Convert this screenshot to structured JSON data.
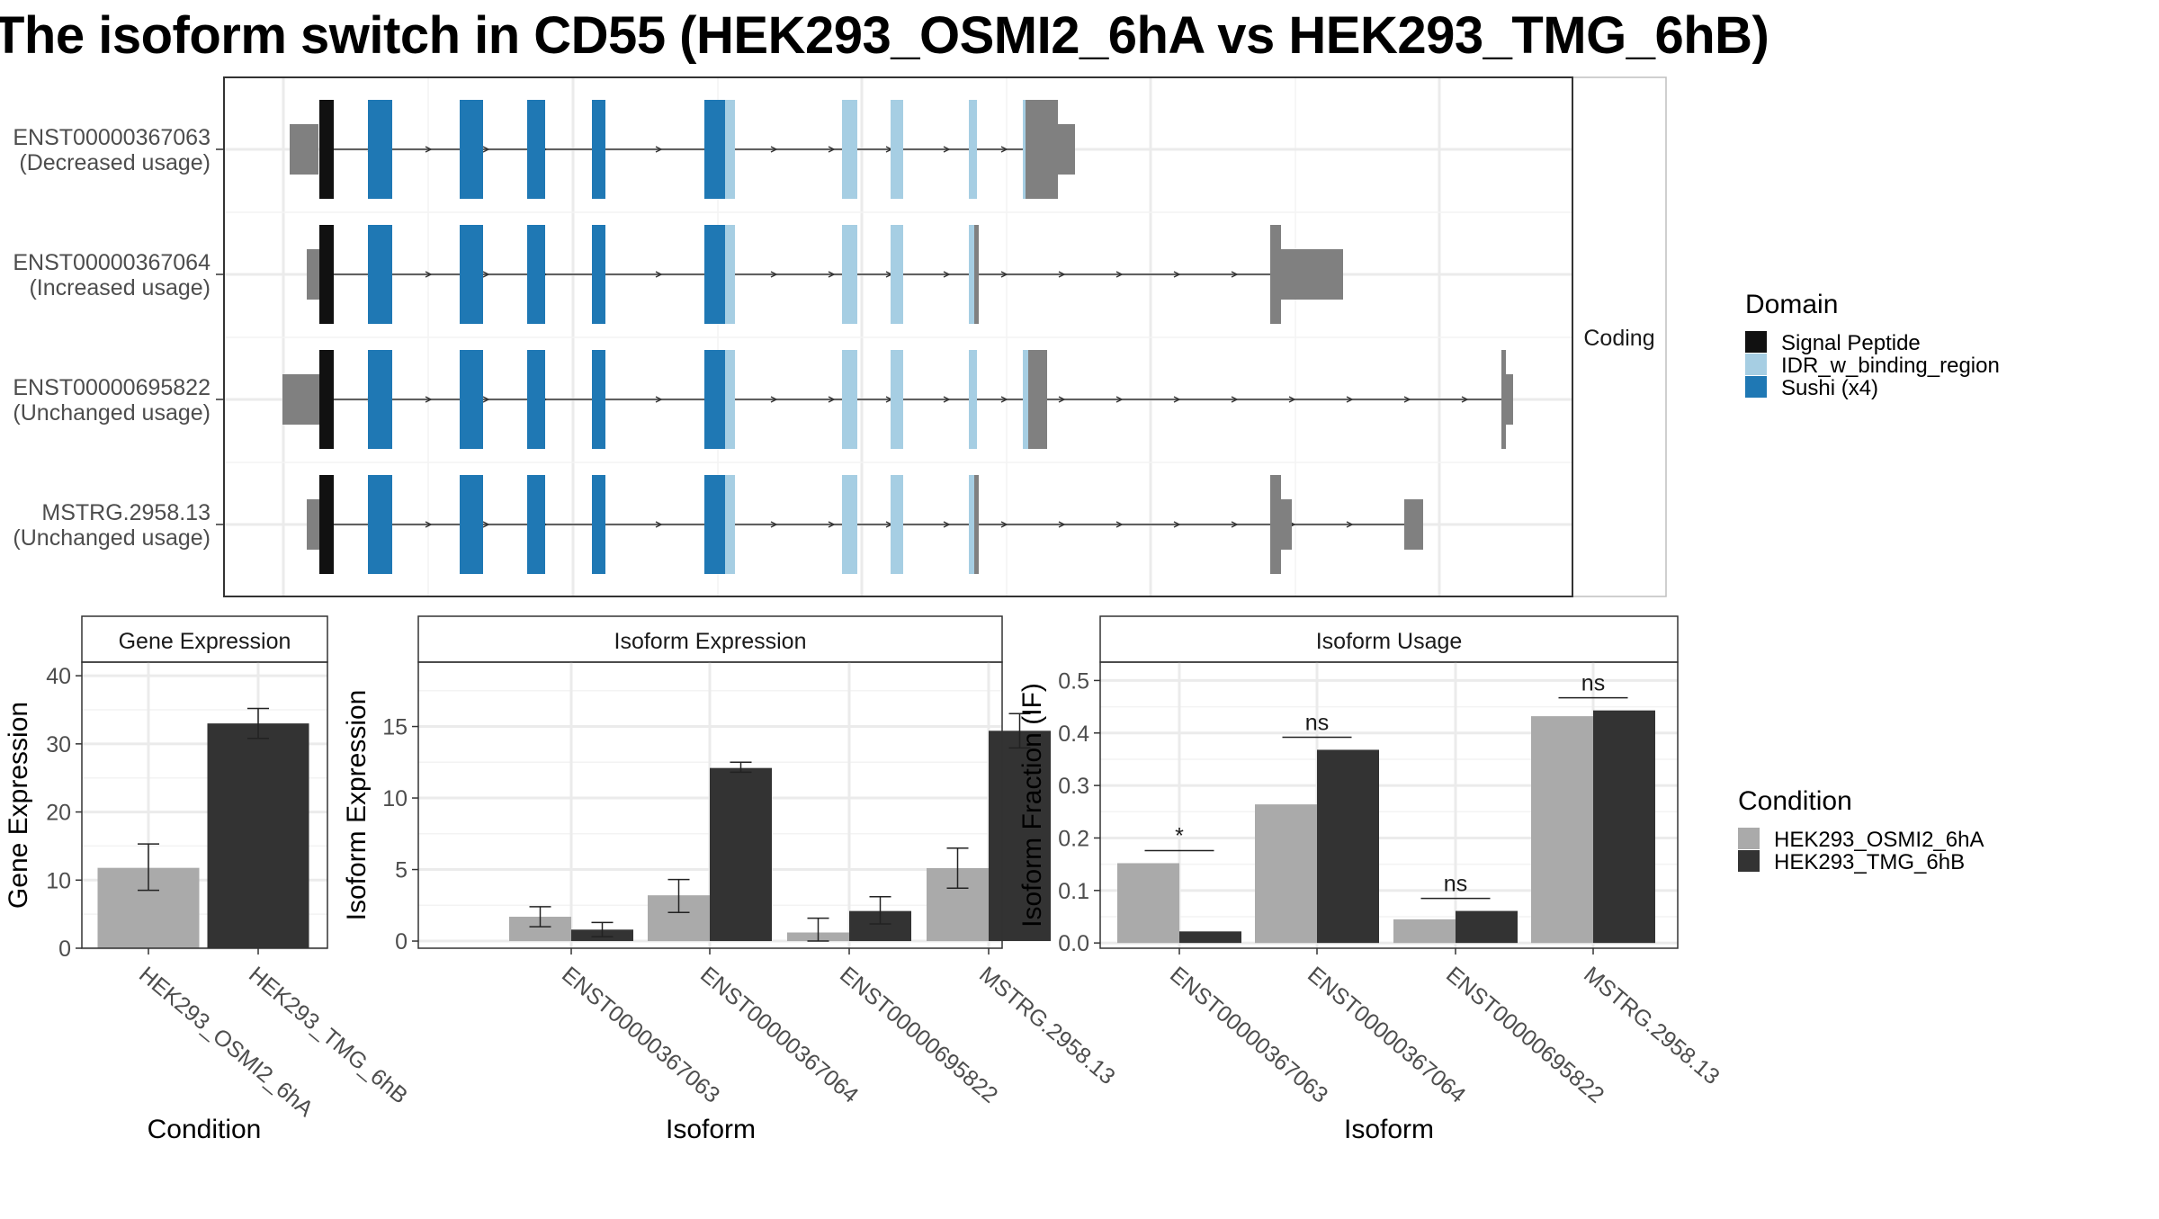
{
  "title": "The isoform switch in CD55 (HEK293_OSMI2_6hA vs HEK293_TMG_6hB)",
  "colors": {
    "signal_peptide": "#111111",
    "idr_binding": "#a6cee3",
    "sushi": "#1f78b4",
    "noncoding": "#808080",
    "cond_a": "#aaaaaa",
    "cond_b": "#333333"
  },
  "isoform_structure": {
    "facet_label": "Coding",
    "transcripts": [
      {
        "id": "ENST00000367063",
        "usage": "(Decreased usage)"
      },
      {
        "id": "ENST00000367064",
        "usage": "(Increased usage)"
      },
      {
        "id": "ENST00000695822",
        "usage": "(Unchanged usage)"
      },
      {
        "id": "MSTRG.2958.13",
        "usage": "(Unchanged usage)"
      }
    ]
  },
  "domain_legend": {
    "title": "Domain",
    "items": [
      {
        "label": "Signal Peptide",
        "color": "#111111"
      },
      {
        "label": "IDR_w_binding_region",
        "color": "#a6cee3"
      },
      {
        "label": "Sushi (x4)",
        "color": "#1f78b4"
      }
    ]
  },
  "condition_legend": {
    "title": "Condition",
    "items": [
      {
        "label": "HEK293_OSMI2_6hA",
        "color": "#aaaaaa"
      },
      {
        "label": "HEK293_TMG_6hB",
        "color": "#333333"
      }
    ]
  },
  "chart_data": [
    {
      "type": "bar",
      "title": "Gene Expression",
      "xlabel": "Condition",
      "ylabel": "Gene Expression",
      "categories": [
        "HEK293_OSMI2_6hA",
        "HEK293_TMG_6hB"
      ],
      "values": [
        11.8,
        33.0
      ],
      "errors": [
        [
          8.5,
          15.3
        ],
        [
          30.8,
          35.2
        ]
      ],
      "colors": [
        "#aaaaaa",
        "#333333"
      ],
      "ylim": [
        0,
        42
      ],
      "yticks": [
        0,
        10,
        20,
        30,
        40
      ]
    },
    {
      "type": "bar",
      "title": "Isoform Expression",
      "xlabel": "Isoform",
      "ylabel": "Isoform Expression",
      "categories": [
        "ENST00000367063",
        "ENST00000367064",
        "ENST00000695822",
        "MSTRG.2958.13"
      ],
      "series": [
        {
          "name": "HEK293_OSMI2_6hA",
          "color": "#aaaaaa",
          "values": [
            1.7,
            3.2,
            0.6,
            5.1
          ],
          "errors": [
            [
              1.0,
              2.4
            ],
            [
              2.0,
              4.3
            ],
            [
              0.0,
              1.6
            ],
            [
              3.7,
              6.5
            ]
          ]
        },
        {
          "name": "HEK293_TMG_6hB",
          "color": "#333333",
          "values": [
            0.8,
            12.1,
            2.1,
            14.7
          ],
          "errors": [
            [
              0.3,
              1.3
            ],
            [
              11.8,
              12.5
            ],
            [
              1.2,
              3.1
            ],
            [
              13.5,
              15.9
            ]
          ]
        }
      ],
      "ylim": [
        -0.5,
        19.5
      ],
      "yticks": [
        0,
        5,
        10,
        15
      ]
    },
    {
      "type": "bar",
      "title": "Isoform Usage",
      "xlabel": "Isoform",
      "ylabel": "Isoform Fraction (IF)",
      "categories": [
        "ENST00000367063",
        "ENST00000367064",
        "ENST00000695822",
        "MSTRG.2958.13"
      ],
      "series": [
        {
          "name": "HEK293_OSMI2_6hA",
          "color": "#aaaaaa",
          "values": [
            0.152,
            0.264,
            0.045,
            0.432
          ]
        },
        {
          "name": "HEK293_TMG_6hB",
          "color": "#333333",
          "values": [
            0.022,
            0.368,
            0.061,
            0.443
          ]
        }
      ],
      "significance": [
        "*",
        "ns",
        "ns",
        "ns"
      ],
      "ylim": [
        -0.01,
        0.535
      ],
      "yticks": [
        0.0,
        0.1,
        0.2,
        0.3,
        0.4,
        0.5
      ],
      "ytick_labels": [
        "0.0",
        "0.1",
        "0.2",
        "0.3",
        "0.4",
        "0.5"
      ]
    }
  ]
}
